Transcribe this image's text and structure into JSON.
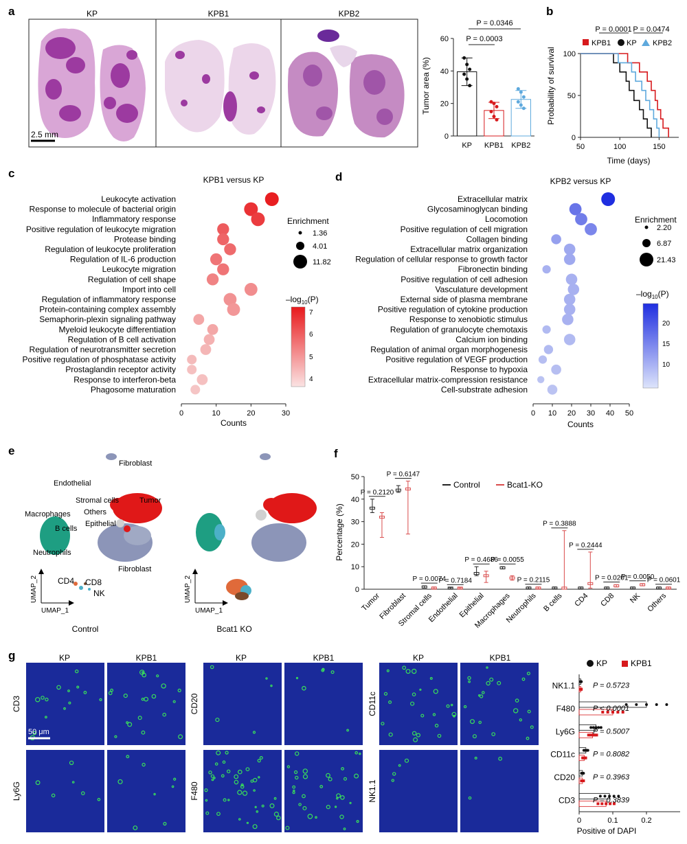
{
  "panel_letters": [
    "a",
    "b",
    "c",
    "d",
    "e",
    "f",
    "g"
  ],
  "panel_a": {
    "histology_titles": [
      "KP",
      "KPB1",
      "KPB2"
    ],
    "scale_bar": "2.5 mm",
    "bar_chart": {
      "ylabel": "Tumor area (%)",
      "pvalues": [
        "P = 0.0346",
        "P = 0.0003"
      ]
    }
  },
  "panel_b": {
    "legend": [
      "KPB1",
      "KP",
      "KPB2"
    ],
    "pvalues": [
      "P = 0.0001",
      "P = 0.0474"
    ],
    "xlabel": "Time (days)",
    "ylabel": "Probability of survival"
  },
  "panel_c": {
    "title": "KPB1 versus KP",
    "xlabel": "Counts",
    "enrichment_title": "Enrichment",
    "enrichment_values": [
      "1.36",
      "4.01",
      "11.82"
    ],
    "colorbar_ticks": [
      "7",
      "6",
      "5",
      "4"
    ]
  },
  "panel_d": {
    "title": "KPB2 versus KP",
    "xlabel": "Counts",
    "enrichment_title": "Enrichment",
    "enrichment_values": [
      "2.20",
      "6.87",
      "21.43"
    ],
    "colorbar_ticks": [
      "20",
      "15",
      "10"
    ]
  },
  "colorbar_title": "–log",
  "colorbar_title_sub": "10",
  "colorbar_title_tail": "(P)",
  "panel_e": {
    "conditions": [
      "Control",
      "Bcat1 KO"
    ],
    "cluster_labels": [
      "Fibroblast",
      "Endothelial",
      "Stromal cells",
      "Tumor",
      "Others",
      "Macrophages",
      "B cells",
      "Epithelial",
      "Neutrophils",
      "Fibroblast",
      "CD4",
      "CD8",
      "NK"
    ],
    "axis_x": "UMAP_1",
    "axis_y": "UMAP_2"
  },
  "panel_f": {
    "legend": [
      "Control",
      "Bcat1-KO"
    ],
    "ylabel": "Percentage (%)",
    "pvalues": [
      "P = 0.2120",
      "P = 0.6147",
      "P = 0.0074",
      "P = 0.7184",
      "P = 0.4686",
      "P = 0.0055",
      "P = 0.2115",
      "P = 0.3888",
      "P = 0.2444",
      "P = 0.0201",
      "P = 0.0050",
      "P = 0.0601"
    ]
  },
  "panel_g": {
    "column_titles": [
      "KP",
      "KPB1"
    ],
    "row_markers": [
      "CD3",
      "Ly6G",
      "CD20",
      "F480",
      "CD11c",
      "NK1.1"
    ],
    "scale_bar": "50 μm",
    "summary": {
      "legend": [
        "KP",
        "KPB1"
      ],
      "xlabel": "Positive of DAPI",
      "pvalues": [
        "P = 0.5723",
        "P < 0.0001",
        "P = 0.5007",
        "P = 0.8082",
        "P = 0.3963",
        "P = 0.3839"
      ]
    }
  },
  "colors": {
    "kp": "#111111",
    "kpb1": "#d7191c",
    "kpb2": "#5ea9dd",
    "c_strong": "#e8191c",
    "d_strong": "#1f2ee0",
    "control": "#222222",
    "ko": "#d94a4a",
    "he_dark": "#9c3aa0",
    "he_light": "#e8c8e6",
    "if_bg": "#1a2a9a",
    "if_green": "#39e05a"
  },
  "chart_data": [
    {
      "panel": "a",
      "type": "bar",
      "categories": [
        "KP",
        "KPB1",
        "KPB2"
      ],
      "values": [
        39.5,
        15.7,
        22.5
      ],
      "errors": [
        8.5,
        5,
        5.5
      ],
      "points": [
        [
          48,
          44,
          41,
          38,
          35,
          31
        ],
        [
          21,
          20,
          18,
          15,
          12,
          10
        ],
        [
          29,
          27,
          24,
          21,
          19,
          17
        ]
      ],
      "ylabel": "Tumor area (%)",
      "ylim": [
        0,
        60
      ],
      "yticks": [
        0,
        20,
        40,
        60
      ],
      "annotations": [
        "P = 0.0346",
        "P = 0.0003"
      ]
    },
    {
      "panel": "b",
      "type": "line",
      "xlabel": "Time (days)",
      "ylabel": "Probability of survival",
      "xlim": [
        50,
        175
      ],
      "ylim": [
        0,
        100
      ],
      "xticks": [
        50,
        100,
        150
      ],
      "yticks": [
        0,
        50,
        100
      ],
      "series": [
        {
          "name": "KP",
          "points": [
            [
              50,
              100
            ],
            [
              92,
              100
            ],
            [
              92,
              89
            ],
            [
              100,
              89
            ],
            [
              100,
              78
            ],
            [
              108,
              78
            ],
            [
              108,
              67
            ],
            [
              112,
              67
            ],
            [
              112,
              56
            ],
            [
              118,
              56
            ],
            [
              118,
              44
            ],
            [
              125,
              44
            ],
            [
              125,
              33
            ],
            [
              130,
              33
            ],
            [
              130,
              22
            ],
            [
              135,
              22
            ],
            [
              135,
              11
            ],
            [
              140,
              11
            ],
            [
              140,
              0
            ]
          ]
        },
        {
          "name": "KPB1",
          "points": [
            [
              50,
              100
            ],
            [
              110,
              100
            ],
            [
              110,
              89
            ],
            [
              125,
              89
            ],
            [
              125,
              78
            ],
            [
              135,
              78
            ],
            [
              135,
              67
            ],
            [
              140,
              67
            ],
            [
              140,
              56
            ],
            [
              145,
              56
            ],
            [
              145,
              44
            ],
            [
              148,
              44
            ],
            [
              148,
              33
            ],
            [
              152,
              33
            ],
            [
              152,
              22
            ],
            [
              155,
              22
            ],
            [
              155,
              11
            ],
            [
              162,
              11
            ],
            [
              162,
              0
            ]
          ]
        },
        {
          "name": "KPB2",
          "points": [
            [
              50,
              100
            ],
            [
              98,
              100
            ],
            [
              98,
              89
            ],
            [
              115,
              89
            ],
            [
              115,
              78
            ],
            [
              120,
              78
            ],
            [
              120,
              67
            ],
            [
              128,
              67
            ],
            [
              128,
              56
            ],
            [
              133,
              56
            ],
            [
              133,
              44
            ],
            [
              138,
              44
            ],
            [
              138,
              33
            ],
            [
              143,
              33
            ],
            [
              143,
              22
            ],
            [
              147,
              22
            ],
            [
              147,
              11
            ],
            [
              150,
              11
            ],
            [
              150,
              0
            ]
          ]
        }
      ],
      "annotations": [
        "P = 0.0001",
        "P = 0.0474"
      ]
    },
    {
      "panel": "c",
      "type": "scatter",
      "title": "KPB1 versus KP",
      "xlabel": "Counts",
      "xlim": [
        0,
        30
      ],
      "xticks": [
        0,
        10,
        20,
        30
      ],
      "terms": [
        "Leukocyte activation",
        "Response to molecule of bacterial origin",
        "Inflammatory response",
        "Positive regulation of leukocyte migration",
        "Protease binding",
        "Regulation of leukocyte proliferation",
        "Regulation of IL-6 production",
        "Leukocyte migration",
        "Regulation of cell shape",
        "Import into cell",
        "Regulation of inflammatory response",
        "Protein-containing complex assembly",
        "Semaphorin-plexin signaling pathway",
        "Myeloid leukocyte differentiation",
        "Regulation of B cell activation",
        "Regulation of neurotransmitter secretion",
        "Positive regulation of phosphatase activity",
        "Prostaglandin receptor activity",
        "Response to interferon-beta",
        "Phagosome maturation"
      ],
      "counts": [
        26,
        20,
        22,
        12,
        12,
        14,
        10,
        12,
        9,
        20,
        14,
        15,
        5,
        9,
        8,
        7,
        3,
        3,
        6,
        4
      ],
      "enrichment": [
        6,
        6,
        6,
        4,
        4,
        4,
        4,
        4,
        4,
        5,
        5,
        5,
        3,
        3,
        3,
        3,
        2,
        2,
        3,
        2
      ],
      "neglog10p": [
        7.2,
        6.8,
        6.6,
        6.0,
        5.8,
        5.7,
        5.5,
        5.5,
        5.2,
        5.0,
        4.9,
        4.8,
        4.5,
        4.5,
        4.3,
        4.2,
        4.1,
        4.0,
        4.0,
        3.9
      ],
      "enrichment_legend": [
        1.36,
        4.01,
        11.82
      ],
      "colorbar_range": [
        3.7,
        7.3
      ]
    },
    {
      "panel": "d",
      "type": "scatter",
      "title": "KPB2 versus KP",
      "xlabel": "Counts",
      "xlim": [
        0,
        50
      ],
      "xticks": [
        0,
        10,
        20,
        30,
        40,
        50
      ],
      "terms": [
        "Extracellular matrix",
        "Glycosaminoglycan binding",
        "Locomotion",
        "Positive regulation of cell migration",
        "Collagen binding",
        "Extracellular matrix organization",
        "Regulation of cellular response to growth factor",
        "Fibronectin binding",
        "Positive regulation of cell adhesion",
        "Vasculature development",
        "External side of plasma membrane",
        "Positive regulation of cytokine production",
        "Response to xenobiotic stimulus",
        "Regulation of granulocyte chemotaxis",
        "Calcium ion binding",
        "Regulation of animal organ morphogenesis",
        "Positive regulation of VEGF production",
        "Response to hypoxia",
        "Extracellular matrix-compression resistance",
        "Cell-substrate adhesion"
      ],
      "counts": [
        39,
        22,
        25,
        30,
        12,
        19,
        19,
        7,
        20,
        21,
        19,
        19,
        18,
        7,
        19,
        8,
        5,
        12,
        4,
        10
      ],
      "enrichment": [
        21,
        15,
        15,
        15,
        8,
        12,
        12,
        4,
        12,
        12,
        12,
        12,
        12,
        4,
        12,
        6,
        4,
        8,
        2,
        8
      ],
      "neglog10p": [
        25,
        17,
        16,
        15,
        12,
        11,
        11,
        10,
        10,
        10,
        10,
        10,
        10,
        9,
        9,
        9,
        8.5,
        8.5,
        8,
        8
      ],
      "enrichment_legend": [
        2.2,
        6.87,
        21.43
      ],
      "colorbar_range": [
        5,
        25
      ]
    },
    {
      "panel": "f",
      "type": "box",
      "categories": [
        "Tumor",
        "Fibroblast",
        "Stromal cells",
        "Endothelial",
        "Epithelial",
        "Macrophages",
        "Neutrophils",
        "B cells",
        "CD4",
        "CD8",
        "NK",
        "Others"
      ],
      "ylabel": "Percentage (%)",
      "ylim": [
        0,
        50
      ],
      "yticks": [
        0,
        10,
        20,
        30,
        40,
        50
      ],
      "series": [
        {
          "name": "Control",
          "median": [
            36,
            44,
            1,
            0.5,
            7,
            9.5,
            0.5,
            0.5,
            0.5,
            0.5,
            0.5,
            0.5
          ],
          "min": [
            34,
            43,
            0.5,
            0.2,
            6,
            9,
            0.2,
            0.2,
            0.2,
            0.2,
            0.2,
            0.2
          ],
          "max": [
            40,
            46,
            1.5,
            0.8,
            10,
            10,
            1,
            1,
            1,
            1,
            1,
            1
          ]
        },
        {
          "name": "Bcat1-KO",
          "median": [
            32,
            44.5,
            0.5,
            0.5,
            6,
            5,
            0.5,
            0.5,
            2.5,
            1.5,
            2,
            0.5
          ],
          "min": [
            23,
            24.5,
            0.2,
            0.2,
            3,
            4,
            0.2,
            0,
            0.5,
            1,
            1.5,
            0.2
          ],
          "max": [
            34,
            48,
            1,
            0.8,
            8,
            6,
            1,
            26,
            16.5,
            2,
            2.5,
            1
          ]
        }
      ],
      "annotations": [
        "P = 0.2120",
        "P = 0.6147",
        "P = 0.0074",
        "P = 0.7184",
        "P = 0.4686",
        "P = 0.0055",
        "P = 0.2115",
        "P = 0.3888",
        "P = 0.2444",
        "P = 0.0201",
        "P = 0.0050",
        "P = 0.0601"
      ]
    },
    {
      "panel": "g",
      "type": "bar",
      "orientation": "horizontal",
      "categories": [
        "NK1.1",
        "F480",
        "Ly6G",
        "CD11c",
        "CD20",
        "CD3"
      ],
      "xlabel": "Positive of DAPI",
      "xlim": [
        0,
        0.3
      ],
      "xticks": [
        0,
        0.1,
        0.2
      ],
      "series": [
        {
          "name": "KP",
          "values": [
            0.005,
            0.2,
            0.05,
            0.02,
            0.01,
            0.09
          ]
        },
        {
          "name": "KPB1",
          "values": [
            0.005,
            0.1,
            0.04,
            0.015,
            0.01,
            0.08
          ]
        }
      ],
      "annotations": [
        "P = 0.5723",
        "P < 0.0001",
        "P = 0.5007",
        "P = 0.8082",
        "P = 0.3963",
        "P = 0.3839"
      ]
    }
  ]
}
